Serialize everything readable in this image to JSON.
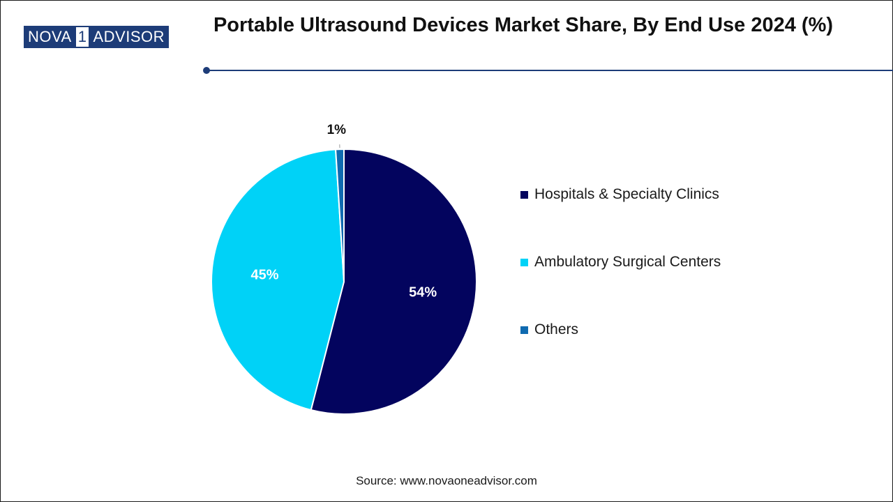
{
  "brand": {
    "logo_left": "NOVA",
    "logo_num": "1",
    "logo_right": "ADVISOR"
  },
  "header": {
    "title": "Portable Ultrasound Devices Market Share, By End Use 2024 (%)"
  },
  "chart_data": {
    "type": "pie",
    "title": "Portable Ultrasound Devices Market Share, By End Use 2024 (%)",
    "legend_position": "right",
    "slices": [
      {
        "name": "Hospitals & Specialty Clinics",
        "value": 54,
        "label": "54%",
        "color": "#03045e"
      },
      {
        "name": "Ambulatory Surgical Centers",
        "value": 45,
        "label": "45%",
        "color": "#00d2f7"
      },
      {
        "name": "Others",
        "value": 1,
        "label": "1%",
        "color": "#0f6ab0"
      }
    ]
  },
  "footer": {
    "source": "Source: www.novaoneadvisor.com"
  }
}
